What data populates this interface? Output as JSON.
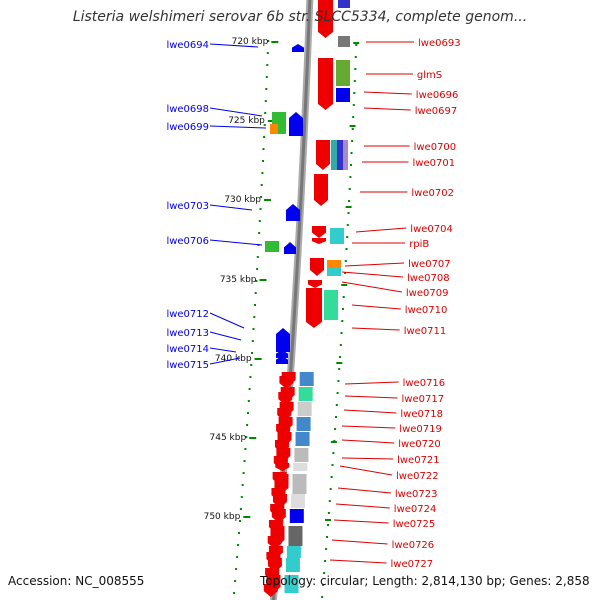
{
  "title": "Listeria welshimeri serovar 6b str. SLCC5334, complete genom...",
  "footer": {
    "accession": "Accession: NC_008555",
    "summary": "Topology: circular; Length: 2,814,130 bp; Genes: 2,858"
  },
  "colors": {
    "minus_strand": "#0000ee",
    "plus_strand": "#dd0000",
    "backbone": "#999999",
    "tick": "#008800"
  },
  "scale": {
    "unit": "kbp",
    "ticks": [
      {
        "label": "720 kbp",
        "kbp": 720
      },
      {
        "label": "725 kbp",
        "kbp": 725
      },
      {
        "label": "730 kbp",
        "kbp": 730
      },
      {
        "label": "735 kbp",
        "kbp": 735
      },
      {
        "label": "740 kbp",
        "kbp": 740
      },
      {
        "label": "745 kbp",
        "kbp": 745
      },
      {
        "label": "750 kbp",
        "kbp": 750
      }
    ]
  },
  "genes_minus": [
    {
      "name": "lwe0694"
    },
    {
      "name": "lwe0698"
    },
    {
      "name": "lwe0699"
    },
    {
      "name": "lwe0703"
    },
    {
      "name": "lwe0706"
    },
    {
      "name": "lwe0712"
    },
    {
      "name": "lwe0713"
    },
    {
      "name": "lwe0714"
    },
    {
      "name": "lwe0715"
    }
  ],
  "genes_plus": [
    {
      "name": "lwe0693"
    },
    {
      "name": "glmS"
    },
    {
      "name": "lwe0696"
    },
    {
      "name": "lwe0697"
    },
    {
      "name": "lwe0700"
    },
    {
      "name": "lwe0701"
    },
    {
      "name": "lwe0702"
    },
    {
      "name": "lwe0704"
    },
    {
      "name": "rpiB"
    },
    {
      "name": "lwe0707"
    },
    {
      "name": "lwe0708"
    },
    {
      "name": "lwe0709"
    },
    {
      "name": "lwe0710"
    },
    {
      "name": "lwe0711"
    },
    {
      "name": "lwe0716"
    },
    {
      "name": "lwe0717"
    },
    {
      "name": "lwe0718"
    },
    {
      "name": "lwe0719"
    },
    {
      "name": "lwe0720"
    },
    {
      "name": "lwe0721"
    },
    {
      "name": "lwe0722"
    },
    {
      "name": "lwe0723"
    },
    {
      "name": "lwe0724"
    },
    {
      "name": "lwe0725"
    },
    {
      "name": "lwe0726"
    },
    {
      "name": "lwe0727"
    }
  ]
}
